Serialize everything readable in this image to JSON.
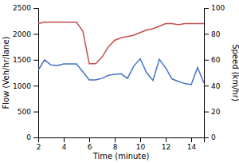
{
  "chart_data": {
    "type": "line",
    "x": [
      2,
      2.5,
      3,
      3.5,
      4,
      4.5,
      5,
      5.5,
      6,
      6.5,
      7,
      7.5,
      8,
      8.5,
      9,
      9.5,
      10,
      10.5,
      11,
      11.5,
      12,
      12.5,
      13,
      13.5,
      14,
      14.5,
      15
    ],
    "series": [
      {
        "color": "#4472C4",
        "values": [
          1300,
          1500,
          1400,
          1390,
          1420,
          1420,
          1420,
          1270,
          1110,
          1110,
          1140,
          1200,
          1220,
          1230,
          1140,
          1380,
          1520,
          1250,
          1100,
          1510,
          1340,
          1130,
          1080,
          1040,
          1020,
          1350,
          1050
        ]
      },
      {
        "color": "#C0504D",
        "axis": "y2",
        "values": [
          88,
          89,
          89,
          89,
          89,
          89,
          89,
          82,
          57,
          57,
          62,
          70,
          75,
          77,
          78,
          79,
          81,
          83,
          84,
          86,
          88,
          88,
          87,
          88,
          88,
          88,
          88
        ]
      }
    ],
    "xlabel": "Time (minute)",
    "ylabel": "Flow (Veh/hr/lane)",
    "y2label": "Speed (km/hr)",
    "xlim": [
      2,
      15
    ],
    "xticks": [
      2,
      4,
      6,
      8,
      10,
      12,
      14
    ],
    "ylim": [
      0,
      2500
    ],
    "yticks": [
      0,
      500,
      1000,
      1500,
      2000,
      2500
    ],
    "y2lim": [
      0,
      100
    ],
    "y2ticks": [
      0,
      20,
      40,
      60,
      80,
      100
    ],
    "grid": false
  }
}
